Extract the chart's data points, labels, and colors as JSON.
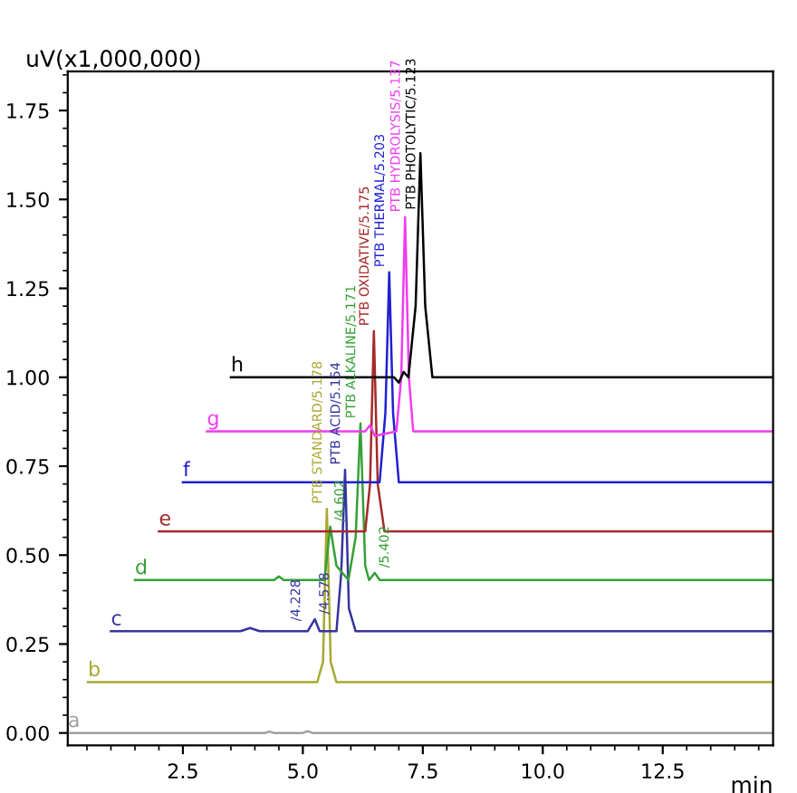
{
  "chart_data": {
    "type": "line",
    "xlabel": "min",
    "ylabel": "uV(x1,000,000)",
    "xlim": [
      0.1,
      14.8
    ],
    "ylim": [
      -0.035,
      1.86
    ],
    "xticks": [
      2.5,
      {
        "value": 5.0,
        "label": "5.0"
      },
      7.5,
      {
        "value": 10.0,
        "label": "10.0"
      },
      12.5
    ],
    "yticks": [
      {
        "value": 0,
        "label": "0.00"
      },
      {
        "value": 0.25,
        "label": "0.25"
      },
      {
        "value": 0.5,
        "label": "0.50"
      },
      {
        "value": 0.75,
        "label": "0.75"
      },
      {
        "value": 1.0,
        "label": "1.00"
      },
      {
        "value": 1.25,
        "label": "1.25"
      },
      {
        "value": 1.5,
        "label": "1.50"
      },
      {
        "value": 1.75,
        "label": "1.75"
      }
    ],
    "grid": false,
    "legend": false,
    "marker": "none",
    "line_style": "solid",
    "series": [
      {
        "name": "a",
        "color": "#a0a0a0",
        "x": [
          0.1,
          4.2,
          4.3,
          4.4,
          5.0,
          5.1,
          5.2,
          14.8
        ],
        "values": [
          0.0,
          0.0,
          0.004,
          0.0,
          0.0,
          0.005,
          0.0,
          0.0
        ]
      },
      {
        "name": "b",
        "color": "#a8a830",
        "x": [
          0.52,
          5.3,
          5.42,
          5.5,
          5.58,
          5.7,
          14.8
        ],
        "values": [
          0.143,
          0.143,
          0.2,
          0.63,
          0.2,
          0.143,
          0.143
        ]
      },
      {
        "name": "c",
        "color": "#3535a0",
        "x": [
          1.0,
          3.7,
          3.9,
          4.1,
          5.1,
          5.25,
          5.35,
          5.7,
          5.8,
          5.88,
          5.96,
          6.1,
          14.8
        ],
        "values": [
          0.286,
          0.286,
          0.295,
          0.286,
          0.286,
          0.32,
          0.286,
          0.286,
          0.45,
          0.74,
          0.35,
          0.286,
          0.286
        ]
      },
      {
        "name": "d",
        "color": "#35a035",
        "x": [
          1.5,
          4.4,
          4.5,
          4.6,
          5.45,
          5.57,
          5.7,
          5.95,
          6.1,
          6.2,
          6.3,
          6.38,
          6.5,
          6.6,
          14.8
        ],
        "values": [
          0.43,
          0.43,
          0.44,
          0.43,
          0.43,
          0.58,
          0.47,
          0.43,
          0.55,
          0.87,
          0.47,
          0.43,
          0.45,
          0.43,
          0.43
        ]
      },
      {
        "name": "e",
        "color": "#a52a2a",
        "x": [
          2.0,
          6.3,
          6.4,
          6.48,
          6.56,
          6.7,
          14.8
        ],
        "values": [
          0.567,
          0.567,
          0.7,
          1.13,
          0.7,
          0.567,
          0.567
        ]
      },
      {
        "name": "f",
        "color": "#2020d0",
        "x": [
          2.5,
          6.6,
          6.72,
          6.8,
          6.88,
          7.0,
          14.8
        ],
        "values": [
          0.705,
          0.705,
          0.9,
          1.295,
          0.9,
          0.705,
          0.705
        ]
      },
      {
        "name": "g",
        "color": "#f03cf0",
        "x": [
          3.0,
          6.3,
          6.4,
          6.5,
          6.95,
          7.05,
          7.13,
          7.21,
          7.3,
          14.8
        ],
        "values": [
          0.848,
          0.848,
          0.865,
          0.835,
          0.848,
          1.0,
          1.45,
          1.0,
          0.848,
          0.848
        ]
      },
      {
        "name": "h",
        "color": "#000000",
        "x": [
          3.5,
          6.9,
          7.0,
          7.1,
          7.2,
          7.35,
          7.45,
          7.55,
          7.7,
          14.8
        ],
        "values": [
          1.0,
          1.0,
          0.985,
          1.015,
          1.0,
          1.2,
          1.63,
          1.2,
          1.0,
          1.0
        ]
      }
    ],
    "annotations": [
      {
        "text": "PTB STANDARD/5.178",
        "x": 5.5,
        "y": 0.63
      },
      {
        "text": "PTB ACID/5.154",
        "x": 5.88,
        "y": 0.74
      },
      {
        "text": "/4.228",
        "x": 5.05,
        "y": 0.3
      },
      {
        "text": "/4.578",
        "x": 5.25,
        "y": 0.32
      },
      {
        "text": "PTB ALKALINE/5.171",
        "x": 6.2,
        "y": 0.87
      },
      {
        "text": "/4.602",
        "x": 5.57,
        "y": 0.58
      },
      {
        "text": "/5.402",
        "x": 6.5,
        "y": 0.45
      },
      {
        "text": "PTB OXIDATIVE/5.175",
        "x": 6.48,
        "y": 1.13
      },
      {
        "text": "PTB THERMAL/5.203",
        "x": 6.8,
        "y": 1.295
      },
      {
        "text": "PTB HYDROLYSIS/5.137",
        "x": 7.13,
        "y": 1.45
      },
      {
        "text": "PTB PHOTOLYTIC/5.123",
        "x": 7.45,
        "y": 1.63
      }
    ]
  }
}
